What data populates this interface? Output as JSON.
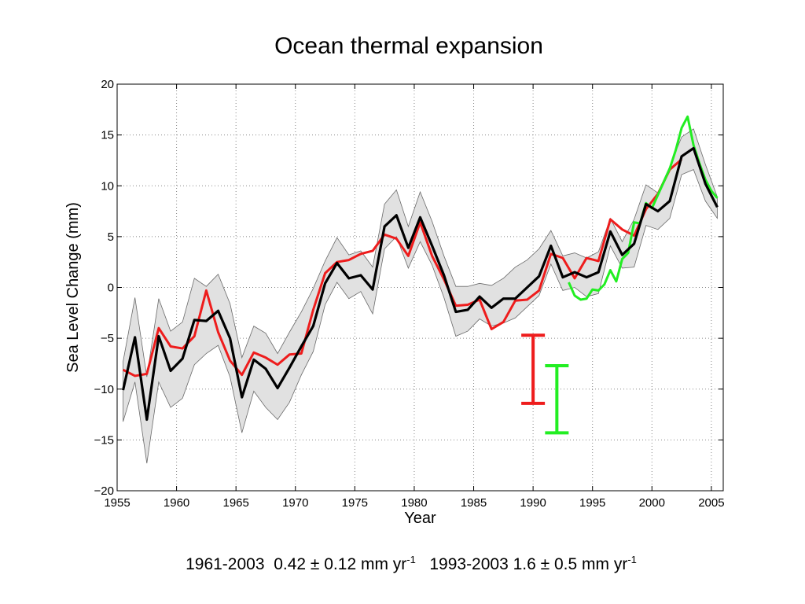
{
  "chart_data": {
    "type": "line",
    "title": "Ocean thermal expansion",
    "xlabel": "Year",
    "ylabel": "Sea Level Change (mm)",
    "xlim": [
      1955,
      2006
    ],
    "ylim": [
      -20,
      20
    ],
    "xticks": [
      1955,
      1960,
      1965,
      1970,
      1975,
      1980,
      1985,
      1990,
      1995,
      2000,
      2005
    ],
    "yticks": [
      -20,
      -15,
      -10,
      -5,
      0,
      5,
      10,
      15,
      20
    ],
    "grid": true,
    "series": [
      {
        "color": "#000000",
        "x": [
          1955.5,
          1956.5,
          1957.5,
          1958.5,
          1959.5,
          1960.5,
          1961.5,
          1962.5,
          1963.5,
          1964.5,
          1965.5,
          1966.5,
          1967.5,
          1968.5,
          1969.5,
          1970.5,
          1971.5,
          1972.5,
          1973.5,
          1974.5,
          1975.5,
          1976.5,
          1977.5,
          1978.5,
          1979.5,
          1980.5,
          1981.5,
          1982.5,
          1983.5,
          1984.5,
          1985.5,
          1986.5,
          1987.5,
          1988.5,
          1989.5,
          1990.5,
          1991.5,
          1992.5,
          1993.5,
          1994.5,
          1995.5,
          1996.5,
          1997.5,
          1998.5,
          1999.5,
          2000.5,
          2001.5,
          2002.5,
          2003.5,
          2004.5,
          2005.5
        ],
        "y": [
          -10.1,
          -4.9,
          -13.0,
          -4.8,
          -8.2,
          -7.0,
          -3.2,
          -3.3,
          -2.3,
          -5.0,
          -10.8,
          -7.1,
          -8.0,
          -9.9,
          -7.9,
          -5.8,
          -3.8,
          0.4,
          2.4,
          0.9,
          1.2,
          -0.2,
          6.0,
          7.1,
          3.9,
          6.9,
          4.1,
          1.2,
          -2.4,
          -2.2,
          -0.9,
          -2.0,
          -1.1,
          -1.1,
          0.0,
          1.1,
          4.1,
          1.0,
          1.5,
          1.0,
          1.5,
          5.5,
          3.2,
          4.3,
          8.2,
          7.5,
          8.5,
          12.9,
          13.7,
          10.2,
          7.9
        ]
      },
      {
        "color": "#ee1c1c",
        "x": [
          1955.5,
          1956.5,
          1957.5,
          1958.5,
          1959.5,
          1960.5,
          1961.5,
          1962.5,
          1963.5,
          1964.5,
          1965.5,
          1966.5,
          1967.5,
          1968.5,
          1969.5,
          1970.5,
          1971.5,
          1972.5,
          1973.5,
          1974.5,
          1975.5,
          1976.5,
          1977.5,
          1978.5,
          1979.5,
          1980.5,
          1981.5,
          1982.5,
          1983.5,
          1984.5,
          1985.5,
          1986.5,
          1987.5,
          1988.5,
          1989.5,
          1990.5,
          1991.5,
          1992.5,
          1993.5,
          1994.5,
          1995.5,
          1996.5,
          1997.5,
          1998.5,
          1999.5,
          2000.5,
          2001.5,
          2002.5
        ],
        "y": [
          -8.1,
          -8.7,
          -8.5,
          -4.0,
          -5.8,
          -6.0,
          -4.8,
          -0.3,
          -4.4,
          -7.2,
          -8.6,
          -6.4,
          -6.9,
          -7.6,
          -6.6,
          -6.5,
          -2.2,
          1.4,
          2.5,
          2.7,
          3.3,
          3.6,
          5.2,
          4.8,
          3.1,
          6.4,
          3.1,
          0.8,
          -1.8,
          -1.7,
          -1.2,
          -4.1,
          -3.4,
          -1.3,
          -1.2,
          -0.3,
          3.3,
          2.9,
          0.9,
          2.9,
          2.6,
          6.7,
          5.7,
          5.1,
          7.7,
          9.2,
          11.6,
          12.6
        ]
      },
      {
        "color": "#22ee22",
        "x": [
          1993,
          1993.5,
          1994,
          1994.5,
          1995,
          1995.5,
          1996,
          1996.5,
          1997,
          1997.5,
          1998,
          1998.5,
          1999,
          1999.5,
          2000,
          2000.5,
          2001,
          2001.5,
          2002,
          2002.5,
          2003,
          2003.5,
          2004,
          2004.5,
          2005,
          2005.5
        ],
        "y": [
          0.5,
          -0.8,
          -1.2,
          -1.1,
          -0.2,
          -0.3,
          0.3,
          1.7,
          0.6,
          2.8,
          3.4,
          6.4,
          6.3,
          8.3,
          7.8,
          9.1,
          10.4,
          11.7,
          13.5,
          15.7,
          16.8,
          14.0,
          12.2,
          10.6,
          9.5,
          8.8
        ]
      }
    ],
    "uncertainty_band": {
      "upper": [
        -7.3,
        -1.0,
        -8.8,
        -1.1,
        -4.3,
        -3.4,
        0.9,
        0.1,
        1.3,
        -1.6,
        -6.9,
        -3.8,
        -4.5,
        -6.5,
        -4.4,
        -2.4,
        -0.1,
        2.6,
        4.9,
        3.2,
        3.6,
        2.0,
        8.2,
        9.6,
        6.0,
        9.4,
        6.5,
        3.1,
        0.1,
        0.1,
        0.4,
        0.2,
        0.9,
        2.0,
        2.7,
        3.8,
        5.6,
        3.1,
        3.4,
        2.9,
        3.5,
        6.8,
        4.5,
        6.7,
        10.1,
        9.3,
        11.9,
        14.8,
        15.6,
        12.1,
        8.9
      ],
      "lower": [
        -13.2,
        -9.3,
        -17.3,
        -9.3,
        -11.8,
        -10.9,
        -7.6,
        -6.5,
        -5.7,
        -8.8,
        -14.3,
        -10.2,
        -11.8,
        -13.0,
        -11.3,
        -8.6,
        -6.3,
        -1.7,
        0.5,
        -1.1,
        -0.4,
        -2.6,
        3.8,
        5.0,
        1.9,
        4.5,
        2.2,
        -1.0,
        -4.8,
        -4.3,
        -3.1,
        -3.8,
        -3.5,
        -3.0,
        -1.9,
        -0.8,
        2.3,
        -0.3,
        0.0,
        -0.9,
        -0.6,
        4.1,
        1.9,
        2.0,
        6.1,
        5.7,
        6.8,
        11.1,
        11.6,
        8.5,
        6.8
      ]
    },
    "error_bars": [
      {
        "color": "#ee1c1c",
        "x": 1990,
        "low": -11.4,
        "high": -4.7
      },
      {
        "color": "#22ee22",
        "x": 1992,
        "low": -14.3,
        "high": -7.7
      }
    ]
  },
  "caption": {
    "part1": "1961-2003  0.42 ± 0.12 mm yr",
    "sup1": "-1",
    "part2": "   1993-2003 1.6 ± 0.5 mm yr",
    "sup2": "-1"
  }
}
